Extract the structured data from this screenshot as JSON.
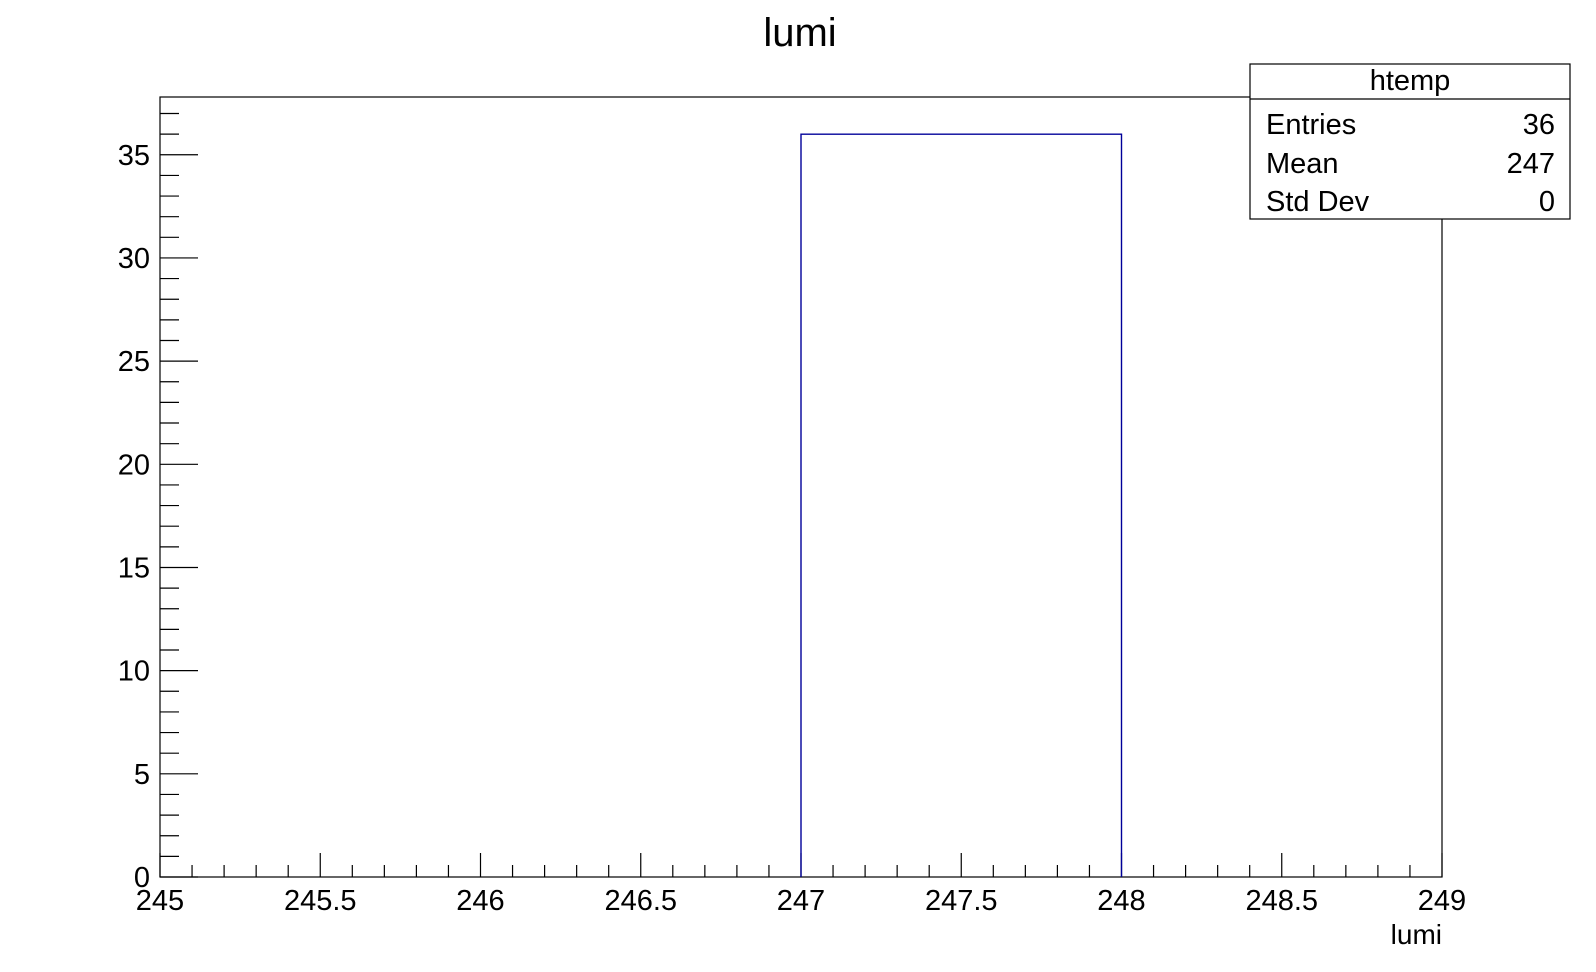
{
  "chart_data": {
    "type": "bar",
    "title": "lumi",
    "xlabel": "lumi",
    "ylabel": "",
    "xlim": [
      245,
      249
    ],
    "ylim": [
      0,
      37.8
    ],
    "x_ticks": [
      "245",
      "245.5",
      "246",
      "246.5",
      "247",
      "247.5",
      "248",
      "248.5",
      "249"
    ],
    "y_ticks": [
      "0",
      "5",
      "10",
      "15",
      "20",
      "25",
      "30",
      "35"
    ],
    "bins": [
      {
        "low": 247,
        "high": 248,
        "value": 36
      }
    ],
    "grid": false,
    "line_color": "#000099",
    "stats_box": {
      "name": "htemp",
      "rows": [
        {
          "label": "Entries",
          "value": "36"
        },
        {
          "label": "Mean",
          "value": "247"
        },
        {
          "label": "Std Dev",
          "value": "0"
        }
      ],
      "position": "top-right"
    }
  }
}
